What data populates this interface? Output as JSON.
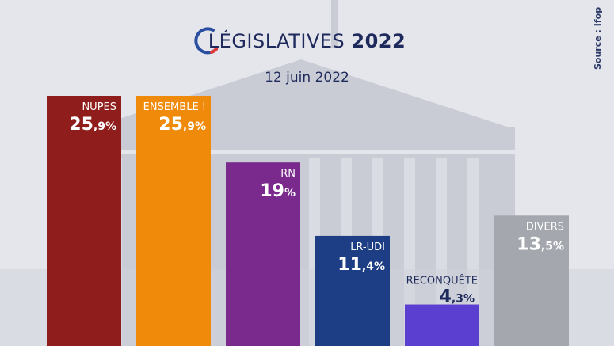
{
  "header": {
    "title_main": "LÉGISLATIVES",
    "title_year": "2022",
    "subtitle": "12 juin 2022",
    "source": "Source : Ifop"
  },
  "colors": {
    "background": "#e4e6ec",
    "title": "#1f2a5c",
    "logo_blue": "#2a4ea0",
    "logo_red": "#e23a3a"
  },
  "chart_data": {
    "type": "bar",
    "title": "",
    "xlabel": "",
    "ylabel": "",
    "ylim": [
      0,
      25.9
    ],
    "unit": "%",
    "categories": [
      "NUPES",
      "ENSEMBLE !",
      "RN",
      "LR-UDI",
      "RECONQUÊTE",
      "DIVERS"
    ],
    "values": [
      25.9,
      25.9,
      19,
      11.4,
      4.3,
      13.5
    ],
    "value_labels": [
      {
        "int": "25",
        "dec": ",9",
        "pct": "%"
      },
      {
        "int": "25",
        "dec": ",9",
        "pct": "%"
      },
      {
        "int": "19",
        "dec": "",
        "pct": "%"
      },
      {
        "int": "11",
        "dec": ",4",
        "pct": "%"
      },
      {
        "int": "4",
        "dec": ",3",
        "pct": "%"
      },
      {
        "int": "13",
        "dec": ",5",
        "pct": "%"
      }
    ],
    "colors": [
      "#8f1d1b",
      "#f08a0a",
      "#7a2a8c",
      "#1d3d84",
      "#5a3fd0",
      "#a4a7ad"
    ],
    "label_inside": [
      true,
      true,
      true,
      true,
      false,
      true
    ],
    "grid": false
  }
}
